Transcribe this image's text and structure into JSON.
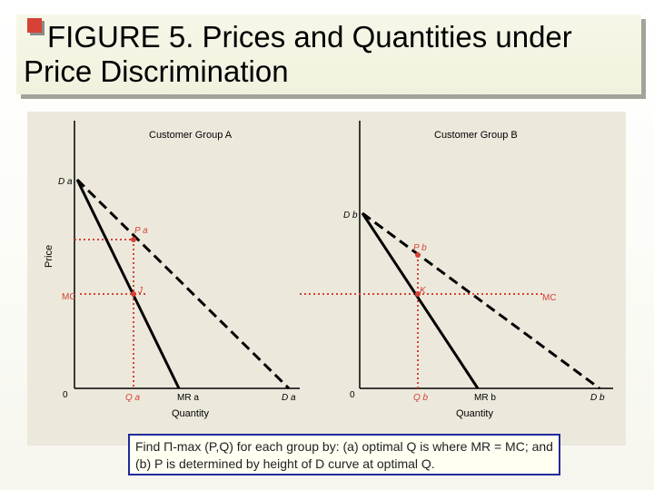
{
  "title": "FIGURE 5. Prices and Quantities under Price Discrimination",
  "panels": {
    "group_a_label": "Customer Group A",
    "group_b_label": "Customer Group B",
    "y_axis_label": "Price",
    "x_axis_label_a": "Quantity",
    "x_axis_label_b": "Quantity"
  },
  "labels_a": {
    "demand_top": "D a",
    "price": "P a",
    "mc": "MC",
    "point_j": "J",
    "origin": "0",
    "quantity": "Q a",
    "mr": "MR a",
    "demand_bottom": "D a"
  },
  "labels_b": {
    "demand_top": "D b",
    "price": "P b",
    "mc": "MC",
    "point_k": "K",
    "origin": "0",
    "quantity": "Q b",
    "mr": "MR b",
    "demand_bottom": "D b"
  },
  "note": "Find Π-max (P,Q) for each group by: (a) optimal Q is where MR = MC; and (b) P is determined by height of D curve at optimal Q.",
  "colors": {
    "accent_red": "#d64235",
    "curve_black": "#000000",
    "note_border": "#1f2a9b",
    "panel_bg": "#ece9dc"
  }
}
